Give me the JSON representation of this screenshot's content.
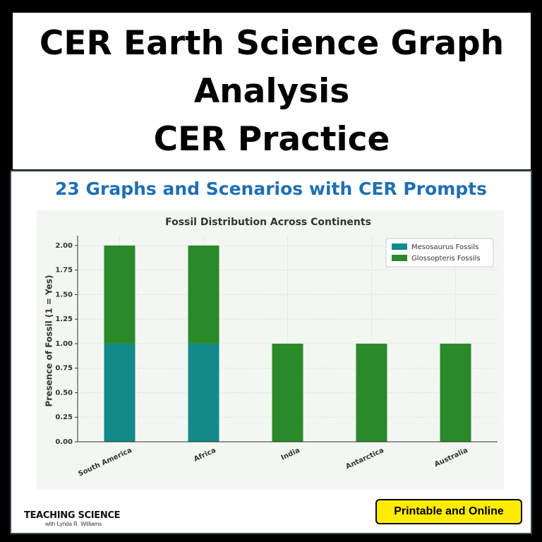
{
  "header": {
    "title_lines": [
      "CER Earth Science Graph",
      "Analysis",
      "CER Practice"
    ]
  },
  "subtitle": "23 Graphs and Scenarios with CER Prompts",
  "chart_data": {
    "type": "bar",
    "stacked": true,
    "title": "Fossil Distribution Across Continents",
    "y_label": "Presence of Fossil (1 = Yes)",
    "categories": [
      "South America",
      "Africa",
      "India",
      "Antarctica",
      "Australia"
    ],
    "series": [
      {
        "name": "Mesosaurus Fossils",
        "color": "#138a8a",
        "values": [
          1,
          1,
          0,
          0,
          0
        ]
      },
      {
        "name": "Glossopteris Fossils",
        "color": "#2a8a2a",
        "values": [
          1,
          1,
          1,
          1,
          1
        ]
      }
    ],
    "ylim": [
      0,
      2.1
    ],
    "yticks": [
      {
        "value": 0,
        "label": "0.00"
      },
      {
        "value": 0.25,
        "label": "0.25"
      },
      {
        "value": 0.5,
        "label": "0.50"
      },
      {
        "value": 0.75,
        "label": "0.75"
      },
      {
        "value": 1,
        "label": "1.00"
      },
      {
        "value": 1.25,
        "label": "1.25"
      },
      {
        "value": 1.5,
        "label": "1.50"
      },
      {
        "value": 1.75,
        "label": "1.75"
      },
      {
        "value": 2,
        "label": "2.00"
      }
    ],
    "grid": true,
    "legend": "upper right"
  },
  "footer": {
    "brand": "TEACHING SCIENCE",
    "brand_sub": "with Lynda R. Williams",
    "button": "Printable and Online"
  }
}
